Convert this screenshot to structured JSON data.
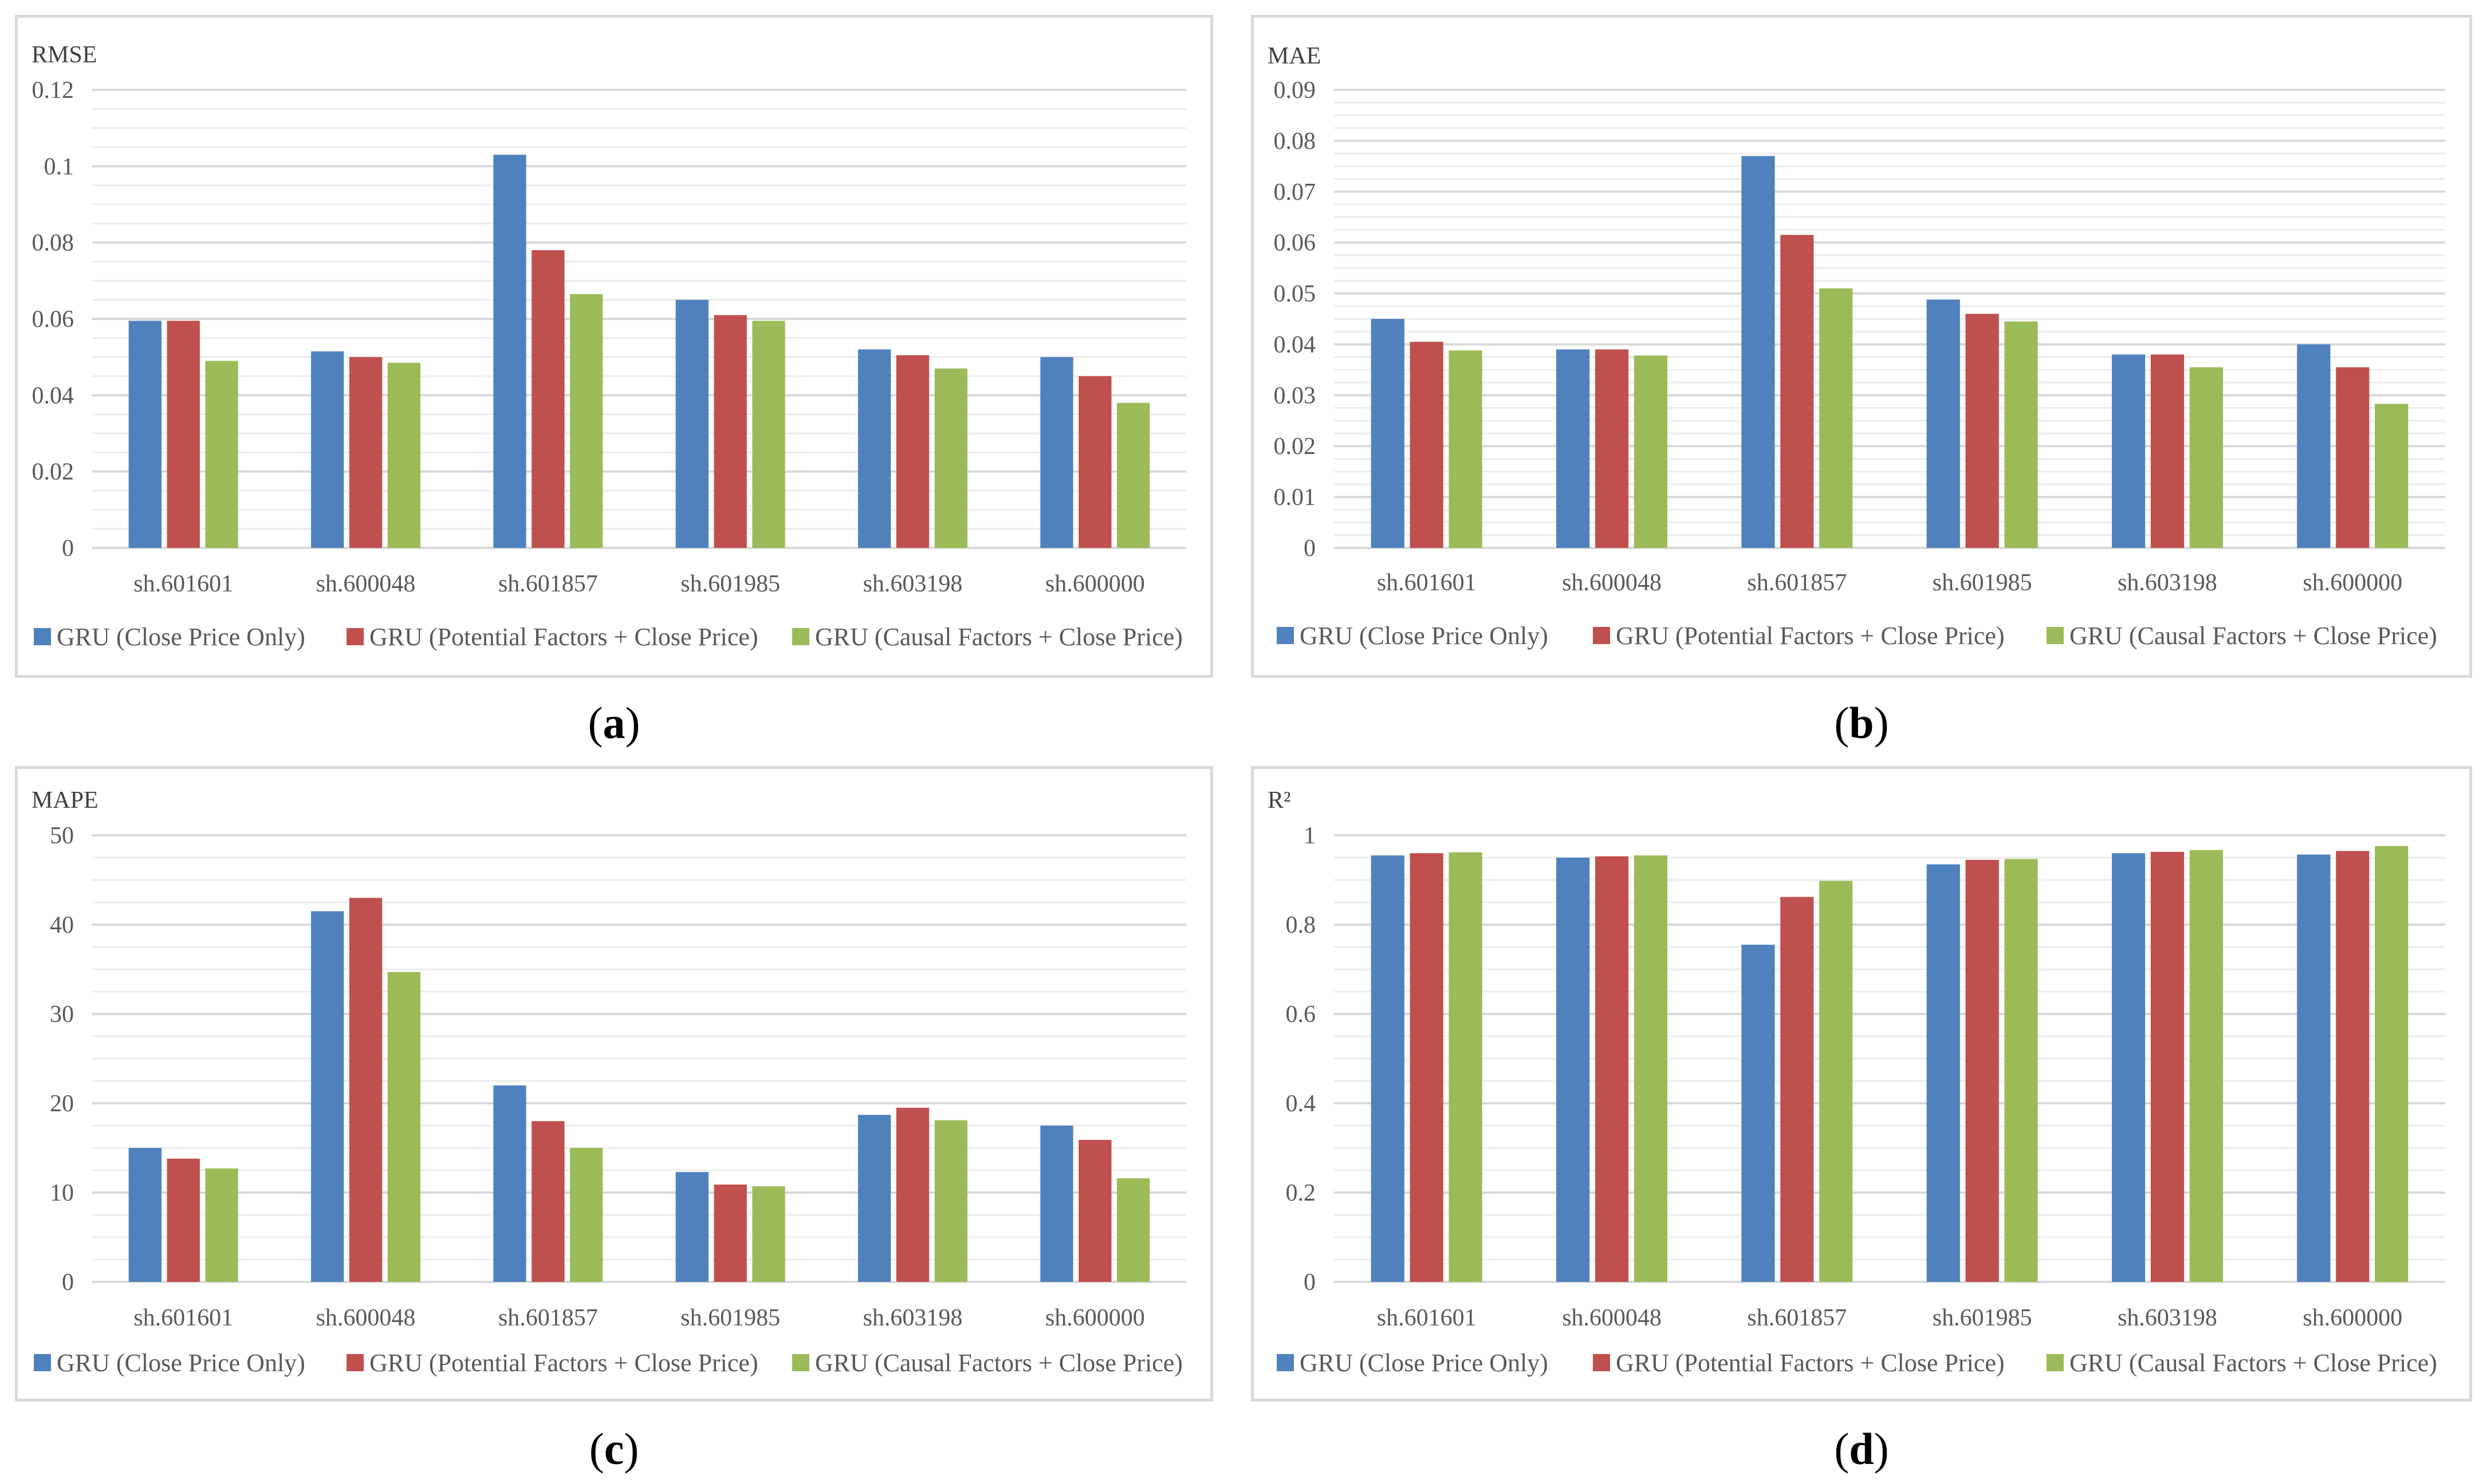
{
  "series_names": [
    "GRU (Close Price Only)",
    "GRU (Potential Factors + Close Price)",
    "GRU (Causal Factors + Close Price)"
  ],
  "colors": [
    "#4f81bd",
    "#c0504d",
    "#9bbb59"
  ],
  "chart_data": [
    {
      "type": "bar",
      "caption_letter": "a",
      "title": "RMSE",
      "categories": [
        "sh.601601",
        "sh.600048",
        "sh.601857",
        "sh.601985",
        "sh.603198",
        "sh.600000"
      ],
      "ylim": [
        0,
        0.12
      ],
      "yticks": [
        "0",
        "0.02",
        "0.04",
        "0.06",
        "0.08",
        "0.1",
        "0.12"
      ],
      "ytick_values": [
        0,
        0.02,
        0.04,
        0.06,
        0.08,
        0.1,
        0.12
      ],
      "minor_step": 0.005,
      "series": [
        {
          "name": "GRU (Close Price Only)",
          "values": [
            0.0595,
            0.0515,
            0.103,
            0.065,
            0.052,
            0.05
          ]
        },
        {
          "name": "GRU (Potential Factors + Close Price)",
          "values": [
            0.0595,
            0.05,
            0.078,
            0.061,
            0.0505,
            0.045
          ]
        },
        {
          "name": "GRU (Causal Factors + Close Price)",
          "values": [
            0.049,
            0.0485,
            0.0665,
            0.0595,
            0.047,
            0.038
          ]
        }
      ]
    },
    {
      "type": "bar",
      "caption_letter": "b",
      "title": "MAE",
      "categories": [
        "sh.601601",
        "sh.600048",
        "sh.601857",
        "sh.601985",
        "sh.603198",
        "sh.600000"
      ],
      "ylim": [
        0,
        0.09
      ],
      "yticks": [
        "0",
        "0.01",
        "0.02",
        "0.03",
        "0.04",
        "0.05",
        "0.06",
        "0.07",
        "0.08",
        "0.09"
      ],
      "ytick_values": [
        0,
        0.01,
        0.02,
        0.03,
        0.04,
        0.05,
        0.06,
        0.07,
        0.08,
        0.09
      ],
      "minor_step": 0.0025,
      "series": [
        {
          "name": "GRU (Close Price Only)",
          "values": [
            0.045,
            0.039,
            0.077,
            0.0488,
            0.038,
            0.04
          ]
        },
        {
          "name": "GRU (Potential Factors + Close Price)",
          "values": [
            0.0405,
            0.039,
            0.0615,
            0.046,
            0.038,
            0.0355
          ]
        },
        {
          "name": "GRU (Causal Factors + Close Price)",
          "values": [
            0.0388,
            0.0378,
            0.051,
            0.0445,
            0.0355,
            0.0283
          ]
        }
      ]
    },
    {
      "type": "bar",
      "caption_letter": "c",
      "title": "MAPE",
      "categories": [
        "sh.601601",
        "sh.600048",
        "sh.601857",
        "sh.601985",
        "sh.603198",
        "sh.600000"
      ],
      "ylim": [
        0,
        50
      ],
      "yticks": [
        "0",
        "10",
        "20",
        "30",
        "40",
        "50"
      ],
      "ytick_values": [
        0,
        10,
        20,
        30,
        40,
        50
      ],
      "minor_step": 2.5,
      "series": [
        {
          "name": "GRU (Close Price Only)",
          "values": [
            15,
            41.5,
            22,
            12.3,
            18.7,
            17.5
          ]
        },
        {
          "name": "GRU (Potential Factors + Close Price)",
          "values": [
            13.8,
            43,
            18,
            10.9,
            19.5,
            15.9
          ]
        },
        {
          "name": "GRU (Causal Factors + Close Price)",
          "values": [
            12.7,
            34.7,
            15,
            10.7,
            18.1,
            11.6
          ]
        }
      ]
    },
    {
      "type": "bar",
      "caption_letter": "d",
      "title": "R²",
      "categories": [
        "sh.601601",
        "sh.600048",
        "sh.601857",
        "sh.601985",
        "sh.603198",
        "sh.600000"
      ],
      "ylim": [
        0,
        1
      ],
      "yticks": [
        "0",
        "0.2",
        "0.4",
        "0.6",
        "0.8",
        "1"
      ],
      "ytick_values": [
        0,
        0.2,
        0.4,
        0.6,
        0.8,
        1
      ],
      "minor_step": 0.05,
      "series": [
        {
          "name": "GRU (Close Price Only)",
          "values": [
            0.955,
            0.95,
            0.755,
            0.935,
            0.96,
            0.957
          ]
        },
        {
          "name": "GRU (Potential Factors + Close Price)",
          "values": [
            0.96,
            0.953,
            0.862,
            0.945,
            0.963,
            0.965
          ]
        },
        {
          "name": "GRU (Causal Factors + Close Price)",
          "values": [
            0.962,
            0.955,
            0.898,
            0.947,
            0.967,
            0.976
          ]
        }
      ]
    }
  ]
}
